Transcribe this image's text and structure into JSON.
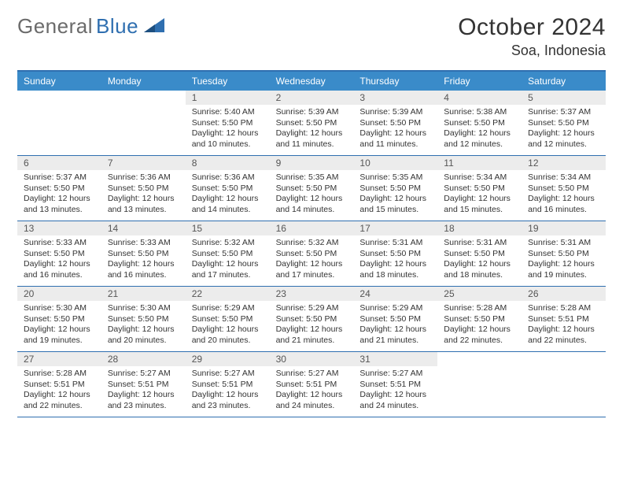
{
  "logo": {
    "text1": "General",
    "text2": "Blue"
  },
  "title": "October 2024",
  "location": "Soa, Indonesia",
  "colors": {
    "header_bar": "#3a8bc9",
    "border": "#2f6fb0",
    "daynum_bg": "#ececec",
    "text": "#333333",
    "logo_gray": "#6b6b6b",
    "logo_blue": "#2f6fb0"
  },
  "daysOfWeek": [
    "Sunday",
    "Monday",
    "Tuesday",
    "Wednesday",
    "Thursday",
    "Friday",
    "Saturday"
  ],
  "weeks": [
    [
      {
        "empty": true
      },
      {
        "empty": true
      },
      {
        "num": "1",
        "sunrise": "Sunrise: 5:40 AM",
        "sunset": "Sunset: 5:50 PM",
        "day1": "Daylight: 12 hours",
        "day2": "and 10 minutes."
      },
      {
        "num": "2",
        "sunrise": "Sunrise: 5:39 AM",
        "sunset": "Sunset: 5:50 PM",
        "day1": "Daylight: 12 hours",
        "day2": "and 11 minutes."
      },
      {
        "num": "3",
        "sunrise": "Sunrise: 5:39 AM",
        "sunset": "Sunset: 5:50 PM",
        "day1": "Daylight: 12 hours",
        "day2": "and 11 minutes."
      },
      {
        "num": "4",
        "sunrise": "Sunrise: 5:38 AM",
        "sunset": "Sunset: 5:50 PM",
        "day1": "Daylight: 12 hours",
        "day2": "and 12 minutes."
      },
      {
        "num": "5",
        "sunrise": "Sunrise: 5:37 AM",
        "sunset": "Sunset: 5:50 PM",
        "day1": "Daylight: 12 hours",
        "day2": "and 12 minutes."
      }
    ],
    [
      {
        "num": "6",
        "sunrise": "Sunrise: 5:37 AM",
        "sunset": "Sunset: 5:50 PM",
        "day1": "Daylight: 12 hours",
        "day2": "and 13 minutes."
      },
      {
        "num": "7",
        "sunrise": "Sunrise: 5:36 AM",
        "sunset": "Sunset: 5:50 PM",
        "day1": "Daylight: 12 hours",
        "day2": "and 13 minutes."
      },
      {
        "num": "8",
        "sunrise": "Sunrise: 5:36 AM",
        "sunset": "Sunset: 5:50 PM",
        "day1": "Daylight: 12 hours",
        "day2": "and 14 minutes."
      },
      {
        "num": "9",
        "sunrise": "Sunrise: 5:35 AM",
        "sunset": "Sunset: 5:50 PM",
        "day1": "Daylight: 12 hours",
        "day2": "and 14 minutes."
      },
      {
        "num": "10",
        "sunrise": "Sunrise: 5:35 AM",
        "sunset": "Sunset: 5:50 PM",
        "day1": "Daylight: 12 hours",
        "day2": "and 15 minutes."
      },
      {
        "num": "11",
        "sunrise": "Sunrise: 5:34 AM",
        "sunset": "Sunset: 5:50 PM",
        "day1": "Daylight: 12 hours",
        "day2": "and 15 minutes."
      },
      {
        "num": "12",
        "sunrise": "Sunrise: 5:34 AM",
        "sunset": "Sunset: 5:50 PM",
        "day1": "Daylight: 12 hours",
        "day2": "and 16 minutes."
      }
    ],
    [
      {
        "num": "13",
        "sunrise": "Sunrise: 5:33 AM",
        "sunset": "Sunset: 5:50 PM",
        "day1": "Daylight: 12 hours",
        "day2": "and 16 minutes."
      },
      {
        "num": "14",
        "sunrise": "Sunrise: 5:33 AM",
        "sunset": "Sunset: 5:50 PM",
        "day1": "Daylight: 12 hours",
        "day2": "and 16 minutes."
      },
      {
        "num": "15",
        "sunrise": "Sunrise: 5:32 AM",
        "sunset": "Sunset: 5:50 PM",
        "day1": "Daylight: 12 hours",
        "day2": "and 17 minutes."
      },
      {
        "num": "16",
        "sunrise": "Sunrise: 5:32 AM",
        "sunset": "Sunset: 5:50 PM",
        "day1": "Daylight: 12 hours",
        "day2": "and 17 minutes."
      },
      {
        "num": "17",
        "sunrise": "Sunrise: 5:31 AM",
        "sunset": "Sunset: 5:50 PM",
        "day1": "Daylight: 12 hours",
        "day2": "and 18 minutes."
      },
      {
        "num": "18",
        "sunrise": "Sunrise: 5:31 AM",
        "sunset": "Sunset: 5:50 PM",
        "day1": "Daylight: 12 hours",
        "day2": "and 18 minutes."
      },
      {
        "num": "19",
        "sunrise": "Sunrise: 5:31 AM",
        "sunset": "Sunset: 5:50 PM",
        "day1": "Daylight: 12 hours",
        "day2": "and 19 minutes."
      }
    ],
    [
      {
        "num": "20",
        "sunrise": "Sunrise: 5:30 AM",
        "sunset": "Sunset: 5:50 PM",
        "day1": "Daylight: 12 hours",
        "day2": "and 19 minutes."
      },
      {
        "num": "21",
        "sunrise": "Sunrise: 5:30 AM",
        "sunset": "Sunset: 5:50 PM",
        "day1": "Daylight: 12 hours",
        "day2": "and 20 minutes."
      },
      {
        "num": "22",
        "sunrise": "Sunrise: 5:29 AM",
        "sunset": "Sunset: 5:50 PM",
        "day1": "Daylight: 12 hours",
        "day2": "and 20 minutes."
      },
      {
        "num": "23",
        "sunrise": "Sunrise: 5:29 AM",
        "sunset": "Sunset: 5:50 PM",
        "day1": "Daylight: 12 hours",
        "day2": "and 21 minutes."
      },
      {
        "num": "24",
        "sunrise": "Sunrise: 5:29 AM",
        "sunset": "Sunset: 5:50 PM",
        "day1": "Daylight: 12 hours",
        "day2": "and 21 minutes."
      },
      {
        "num": "25",
        "sunrise": "Sunrise: 5:28 AM",
        "sunset": "Sunset: 5:50 PM",
        "day1": "Daylight: 12 hours",
        "day2": "and 22 minutes."
      },
      {
        "num": "26",
        "sunrise": "Sunrise: 5:28 AM",
        "sunset": "Sunset: 5:51 PM",
        "day1": "Daylight: 12 hours",
        "day2": "and 22 minutes."
      }
    ],
    [
      {
        "num": "27",
        "sunrise": "Sunrise: 5:28 AM",
        "sunset": "Sunset: 5:51 PM",
        "day1": "Daylight: 12 hours",
        "day2": "and 22 minutes."
      },
      {
        "num": "28",
        "sunrise": "Sunrise: 5:27 AM",
        "sunset": "Sunset: 5:51 PM",
        "day1": "Daylight: 12 hours",
        "day2": "and 23 minutes."
      },
      {
        "num": "29",
        "sunrise": "Sunrise: 5:27 AM",
        "sunset": "Sunset: 5:51 PM",
        "day1": "Daylight: 12 hours",
        "day2": "and 23 minutes."
      },
      {
        "num": "30",
        "sunrise": "Sunrise: 5:27 AM",
        "sunset": "Sunset: 5:51 PM",
        "day1": "Daylight: 12 hours",
        "day2": "and 24 minutes."
      },
      {
        "num": "31",
        "sunrise": "Sunrise: 5:27 AM",
        "sunset": "Sunset: 5:51 PM",
        "day1": "Daylight: 12 hours",
        "day2": "and 24 minutes."
      },
      {
        "empty": true
      },
      {
        "empty": true
      }
    ]
  ]
}
